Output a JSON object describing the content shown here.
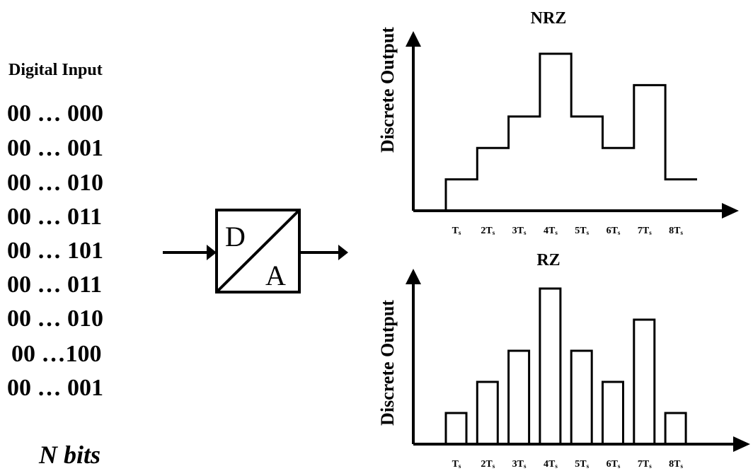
{
  "input": {
    "title": "Digital Input",
    "codes": [
      "00 … 000",
      "00 … 001",
      "00 … 010",
      "00 … 011",
      "00 … 101",
      "00 … 011",
      "00 … 010",
      "00 …100",
      "00 … 001"
    ],
    "footer": "N bits"
  },
  "converter": {
    "top_letter": "D",
    "bottom_letter": "A"
  },
  "chart_data": [
    {
      "type": "line",
      "title": "NRZ",
      "ylabel": "Discrete Output",
      "xlabel": "",
      "x_ticks": [
        {
          "main": "T",
          "sub": "s"
        },
        {
          "main": "2T",
          "sub": "s"
        },
        {
          "main": "3T",
          "sub": "s"
        },
        {
          "main": "4T",
          "sub": "s"
        },
        {
          "main": "5T",
          "sub": "s"
        },
        {
          "main": "6T",
          "sub": "s"
        },
        {
          "main": "7T",
          "sub": "s"
        },
        {
          "main": "8T",
          "sub": "s"
        }
      ],
      "values": [
        1,
        2,
        3,
        5,
        3,
        2,
        4,
        1
      ],
      "ylim": [
        0,
        5
      ],
      "grid": false
    },
    {
      "type": "bar",
      "title": "RZ",
      "ylabel": "Discrete Output",
      "xlabel": "",
      "x_ticks": [
        {
          "main": "T",
          "sub": "s"
        },
        {
          "main": "2T",
          "sub": "s"
        },
        {
          "main": "3T",
          "sub": "s"
        },
        {
          "main": "4T",
          "sub": "s"
        },
        {
          "main": "5T",
          "sub": "s"
        },
        {
          "main": "6T",
          "sub": "s"
        },
        {
          "main": "7T",
          "sub": "s"
        },
        {
          "main": "8T",
          "sub": "s"
        }
      ],
      "values": [
        1,
        2,
        3,
        5,
        3,
        2,
        4,
        1
      ],
      "ylim": [
        0,
        5
      ],
      "grid": false
    }
  ]
}
